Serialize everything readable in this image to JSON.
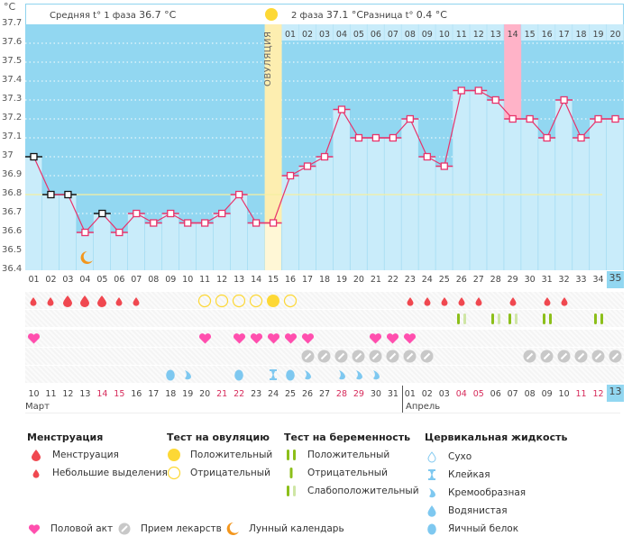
{
  "header": {
    "avg_phase1_label": "Средняя t° 1 фаза",
    "avg_phase1_value": "36.7 °C",
    "avg_phase2_label": "2 фаза",
    "avg_phase2_value": "37.1 °C",
    "diff_label": "Разница t°",
    "diff_value": "0.4 °C"
  },
  "ovulation_label": "ОВУЛЯЦИЯ",
  "colors": {
    "sky": "#92d7f1",
    "bar": "#c9ecfa",
    "line": "#e8336b",
    "ovulation": "#fdeeb0",
    "highlight": "#ffb3c8",
    "blood": "#f04850",
    "heart": "#ff4fae",
    "pill": "#c8c8c8",
    "test_pos": "#8cbf1a",
    "test_weak": "#cfe6a5",
    "ov_test": "#fdd835",
    "fluid": "#7ec8f0",
    "moon": "#f3961c",
    "weekend": "#d62a5a"
  },
  "chart_data": {
    "type": "line",
    "title": "",
    "ylabel": "°C",
    "ylim": [
      36.4,
      37.7
    ],
    "yticks": [
      "37.7",
      "37.6",
      "37.5",
      "37.4",
      "37.3",
      "37.2",
      "37.1",
      "37",
      "36.9",
      "36.8",
      "36.7",
      "36.6",
      "36.5",
      "36.4"
    ],
    "x": [
      "01",
      "02",
      "03",
      "04",
      "05",
      "06",
      "07",
      "08",
      "09",
      "10",
      "11",
      "12",
      "13",
      "14",
      "15",
      "16",
      "17",
      "18",
      "19",
      "20",
      "21",
      "22",
      "23",
      "24",
      "25",
      "26",
      "27",
      "28",
      "29",
      "30",
      "31",
      "32",
      "33",
      "34",
      "35"
    ],
    "values": [
      37.0,
      36.8,
      36.8,
      36.6,
      36.7,
      36.6,
      36.7,
      36.65,
      36.7,
      36.65,
      36.65,
      36.7,
      36.8,
      36.65,
      36.65,
      36.9,
      36.95,
      37.0,
      37.25,
      37.1,
      37.1,
      37.1,
      37.2,
      37.0,
      36.95,
      37.35,
      37.35,
      37.3,
      37.2,
      37.2,
      37.1,
      37.3,
      37.1,
      37.2,
      37.2
    ],
    "excluded_days": [
      "01",
      "02",
      "03",
      "05"
    ],
    "coverline": 36.8,
    "ovulation_day": "15",
    "highlight_day": "29",
    "current_day": "35",
    "top_row_days": [
      "01",
      "02",
      "03",
      "04",
      "05",
      "06",
      "07",
      "08",
      "09",
      "10",
      "11",
      "12",
      "13",
      "14",
      "15",
      "16",
      "17",
      "18",
      "19",
      "20"
    ],
    "top_row_highlight": "14",
    "grid": true
  },
  "rows": {
    "menstruation": [
      "spot",
      "spot",
      "big",
      "big",
      "big",
      "spot",
      "spot",
      "",
      "",
      "",
      "",
      "",
      "",
      "",
      "",
      "",
      "",
      "",
      "",
      "",
      "",
      "",
      "spot",
      "spot",
      "spot",
      "spot",
      "spot",
      "",
      "spot",
      "",
      "spot",
      "spot",
      "",
      "",
      ""
    ],
    "ovulation_test": [
      "",
      "",
      "",
      "",
      "",
      "",
      "",
      "",
      "",
      "",
      "neg",
      "neg",
      "neg",
      "neg",
      "pos",
      "neg",
      "",
      "",
      "",
      "",
      "",
      "",
      "",
      "",
      "",
      "",
      "",
      "",
      "",
      "",
      "",
      "",
      "",
      "",
      ""
    ],
    "pregnancy_test": [
      "",
      "",
      "",
      "",
      "",
      "",
      "",
      "",
      "",
      "",
      "",
      "",
      "",
      "",
      "",
      "",
      "",
      "",
      "",
      "",
      "",
      "",
      "",
      "",
      "",
      "weak",
      "",
      "weak",
      "weak",
      "",
      "pos",
      "",
      "",
      "pos",
      ""
    ],
    "intercourse": [
      "1",
      "",
      "",
      "",
      "",
      "",
      "",
      "",
      "",
      "",
      "1",
      "",
      "1",
      "1",
      "1",
      "1",
      "1",
      "",
      "",
      "",
      "1",
      "1",
      "1",
      "",
      "",
      "",
      "",
      "",
      "",
      "",
      "",
      "",
      "",
      "",
      ""
    ],
    "medication": [
      "",
      "",
      "",
      "",
      "",
      "",
      "",
      "",
      "",
      "",
      "",
      "",
      "",
      "",
      "",
      "",
      "1",
      "1",
      "1",
      "1",
      "1",
      "1",
      "1",
      "1",
      "",
      "",
      "",
      "",
      "",
      "1",
      "1",
      "1",
      "1",
      "1",
      "1"
    ],
    "cervical_fluid": [
      "",
      "",
      "",
      "",
      "",
      "",
      "",
      "",
      "egg",
      "creamy",
      "",
      "",
      "egg",
      "",
      "sticky",
      "egg",
      "creamy",
      "",
      "creamy",
      "creamy",
      "creamy",
      "",
      "",
      "",
      "",
      "",
      "",
      "",
      "",
      "",
      "",
      "",
      "",
      "",
      ""
    ],
    "moon_day": "04"
  },
  "dates": {
    "days": [
      "10",
      "11",
      "12",
      "13",
      "14",
      "15",
      "16",
      "17",
      "18",
      "19",
      "20",
      "21",
      "22",
      "23",
      "24",
      "25",
      "26",
      "27",
      "28",
      "29",
      "30",
      "31",
      "01",
      "02",
      "03",
      "04",
      "05",
      "06",
      "07",
      "08",
      "09",
      "10",
      "11",
      "12",
      "13"
    ],
    "weekend": [
      4,
      5,
      11,
      12,
      18,
      19,
      25,
      26,
      32,
      33
    ],
    "months": [
      "Март",
      "Апрель"
    ]
  },
  "legend": {
    "menstruation": {
      "title": "Менструация",
      "items": [
        "Менструация",
        "Небольшие выделения"
      ]
    },
    "ovulation_test": {
      "title": "Тест на овуляцию",
      "items": [
        "Положительный",
        "Отрицательный"
      ]
    },
    "pregnancy_test": {
      "title": "Тест на беременность",
      "items": [
        "Положительный",
        "Отрицательный",
        "Слабоположительный"
      ]
    },
    "cervical_fluid": {
      "title": "Цервикальная жидкость",
      "items": [
        "Сухо",
        "Клейкая",
        "Кремообразная",
        "Водянистая",
        "Яичный белок"
      ]
    },
    "other": [
      "Половой акт",
      "Прием лекарств",
      "Лунный календарь"
    ]
  }
}
